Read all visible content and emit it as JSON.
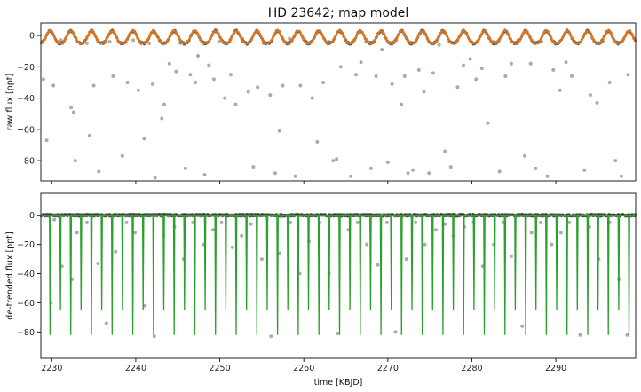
{
  "chart_data": [
    {
      "type": "scatter",
      "title": "HD 23642; map model",
      "xlabel": "",
      "ylabel": "raw flux [ppt]",
      "xlim": [
        2228.7,
        2299.5
      ],
      "ylim": [
        -93,
        8
      ],
      "yticks": [
        0,
        -20,
        -40,
        -60,
        -80
      ],
      "grid": false,
      "colors": {
        "data": "#3a3a3a",
        "model": "#ff7f0e",
        "outliers": "#8f8f8f"
      },
      "series": [
        {
          "kind": "light-curve",
          "period_days": 2.46113,
          "first_eclipse": 2229.8,
          "modulation_amplitude_ppt": 4.0,
          "mean_ppt": -1.5
        },
        {
          "kind": "model",
          "period_days": 2.46113,
          "first_eclipse": 2229.8
        },
        {
          "kind": "outliers",
          "x": [
            2229.0,
            2229.4,
            2230.2,
            2231.1,
            2232.3,
            2232.6,
            2232.8,
            2234.2,
            2234.5,
            2235.0,
            2235.6,
            2236.9,
            2237.3,
            2238.4,
            2239.0,
            2239.7,
            2240.3,
            2241.0,
            2241.6,
            2242.0,
            2242.3,
            2243.1,
            2243.4,
            2244.0,
            2244.8,
            2245.3,
            2245.9,
            2246.5,
            2247.1,
            2247.4,
            2248.2,
            2248.7,
            2249.3,
            2249.9,
            2250.6,
            2251.3,
            2251.9,
            2252.7,
            2253.4,
            2254.0,
            2254.5,
            2255.2,
            2256.0,
            2256.6,
            2257.1,
            2257.5,
            2258.3,
            2259.0,
            2259.6,
            2260.3,
            2261.0,
            2261.6,
            2262.3,
            2263.0,
            2263.5,
            2263.9,
            2264.4,
            2265.0,
            2265.6,
            2266.2,
            2266.8,
            2267.4,
            2268.0,
            2268.6,
            2269.3,
            2270.0,
            2270.5,
            2271.0,
            2271.6,
            2272.0,
            2272.4,
            2273.0,
            2273.7,
            2274.3,
            2274.9,
            2275.4,
            2276.1,
            2276.8,
            2277.5,
            2278.3,
            2279.0,
            2279.8,
            2280.5,
            2281.2,
            2281.9,
            2282.6,
            2283.3,
            2284.0,
            2284.7,
            2285.5,
            2286.3,
            2287.0,
            2287.6,
            2288.3,
            2289.0,
            2289.7,
            2290.5,
            2291.2,
            2291.9,
            2292.6,
            2293.4,
            2294.1,
            2294.9,
            2295.6,
            2296.4,
            2297.1,
            2297.8,
            2298.6
          ],
          "y": [
            -28,
            -67,
            -32,
            -3,
            -46,
            -49,
            -80,
            -5,
            -64,
            -32,
            -87,
            -4,
            -26,
            -77,
            -30,
            -3,
            -35,
            -66,
            -5,
            -31,
            -91,
            -53,
            -44,
            -18,
            -23,
            -5,
            -85,
            -25,
            -30,
            -13,
            -89,
            -19,
            -28,
            -4,
            -40,
            -25,
            -44,
            -2,
            -36,
            -84,
            -33,
            -5,
            -38,
            -88,
            -61,
            -32,
            -2,
            -90,
            -32,
            -5,
            -40,
            -68,
            -30,
            -4,
            -80,
            -79,
            -20,
            -3,
            -90,
            -25,
            -17,
            -4,
            -85,
            -26,
            -9,
            -81,
            -31,
            -3,
            -44,
            -26,
            -88,
            -86,
            -22,
            -36,
            -88,
            -24,
            -6,
            -74,
            -84,
            -33,
            -19,
            -15,
            -28,
            -21,
            -56,
            -4,
            -87,
            -26,
            -18,
            -3,
            -77,
            -18,
            -85,
            -4,
            -90,
            -22,
            -35,
            -17,
            -26,
            -5,
            -86,
            -38,
            -43,
            -4,
            -30,
            -80,
            -90,
            -25
          ]
        }
      ]
    },
    {
      "type": "scatter",
      "title": "",
      "xlabel": "time [KBJD]",
      "ylabel": "de-trended flux [ppt]",
      "xlim": [
        2228.7,
        2299.5
      ],
      "ylim": [
        -98,
        15
      ],
      "xticks": [
        2230,
        2240,
        2250,
        2260,
        2270,
        2280,
        2290
      ],
      "yticks": [
        0,
        -20,
        -40,
        -60,
        -80
      ],
      "grid": false,
      "colors": {
        "data": "#3a3a3a",
        "model": "#2ca02c"
      },
      "series": [
        {
          "kind": "eclipse-model",
          "period_days": 2.46113,
          "first_eclipse": 2229.8,
          "eclipses": [
            {
              "phase": 0.0,
              "depth_ppt": -82
            },
            {
              "phase": 0.5,
              "depth_ppt": -65
            }
          ]
        },
        {
          "kind": "in-eclipse-points",
          "x": [
            2229.9,
            2230.3,
            2231.2,
            2232.4,
            2233.0,
            2234.2,
            2235.5,
            2236.5,
            2237.6,
            2238.9,
            2239.9,
            2241.1,
            2242.2,
            2243.3,
            2244.6,
            2245.7,
            2246.8,
            2248.1,
            2249.2,
            2250.2,
            2251.5,
            2252.6,
            2253.7,
            2255.0,
            2256.1,
            2257.1,
            2258.4,
            2259.5,
            2260.6,
            2261.9,
            2263.0,
            2264.0,
            2265.3,
            2266.4,
            2267.5,
            2268.8,
            2269.9,
            2270.9,
            2272.2,
            2273.3,
            2274.4,
            2275.7,
            2276.8,
            2277.8,
            2279.1,
            2280.2,
            2281.3,
            2282.6,
            2283.7,
            2284.7,
            2286.0,
            2287.1,
            2288.2,
            2289.5,
            2290.6,
            2291.6,
            2292.9,
            2294.0,
            2295.1,
            2296.4,
            2297.5,
            2298.5
          ],
          "y": [
            -60,
            -3,
            -35,
            -44,
            -12,
            -5,
            -33,
            -74,
            -25,
            -5,
            -12,
            -62,
            -83,
            -14,
            -8,
            -30,
            -5,
            -20,
            -10,
            -5,
            -22,
            -14,
            -6,
            -30,
            -83,
            -26,
            -5,
            -40,
            -18,
            -5,
            -40,
            -81,
            -10,
            -5,
            -20,
            -34,
            -5,
            -80,
            -30,
            -5,
            -20,
            -10,
            -6,
            -14,
            -8,
            -5,
            -35,
            -20,
            -5,
            -28,
            -76,
            -12,
            -5,
            -20,
            -12,
            -5,
            -82,
            -8,
            -30,
            -5,
            -44,
            -82
          ]
        }
      ]
    }
  ]
}
